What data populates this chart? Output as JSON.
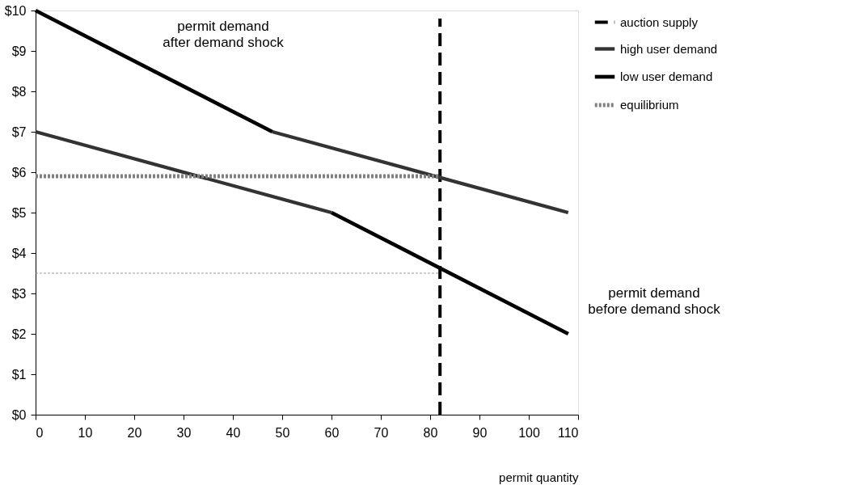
{
  "chart_data": {
    "type": "line",
    "xlabel": "permit quantity",
    "xlim": [
      0,
      110
    ],
    "xticks": [
      0,
      10,
      20,
      30,
      40,
      50,
      60,
      70,
      80,
      90,
      100,
      110
    ],
    "ylim": [
      0,
      10
    ],
    "yticks": [
      {
        "value": 0,
        "label": "$0"
      },
      {
        "value": 1,
        "label": "$1"
      },
      {
        "value": 2,
        "label": "$2"
      },
      {
        "value": 3,
        "label": "$3"
      },
      {
        "value": 4,
        "label": "$4"
      },
      {
        "value": 5,
        "label": "$5"
      },
      {
        "value": 6,
        "label": "$6"
      },
      {
        "value": 7,
        "label": "$7"
      },
      {
        "value": 8,
        "label": "$8"
      },
      {
        "value": 9,
        "label": "$9"
      },
      {
        "value": 10,
        "label": "$10"
      }
    ],
    "series": [
      {
        "name": "auction supply",
        "color": "#000000",
        "line_style": "dashed",
        "x": [
          82,
          82
        ],
        "values": [
          0,
          9.8
        ]
      },
      {
        "name": "high user demand",
        "color": "#333333",
        "line_style": "solid",
        "x": [
          0,
          60,
          null,
          48,
          108
        ],
        "values": [
          7,
          5,
          null,
          7,
          5
        ]
      },
      {
        "name": "low user demand",
        "color": "#000000",
        "line_style": "solid",
        "x": [
          0,
          48,
          null,
          60,
          108
        ],
        "values": [
          10,
          7,
          null,
          5,
          2
        ]
      },
      {
        "name": "equilibrium",
        "color": "#808080",
        "line_style": "dotted",
        "x": [
          0,
          82
        ],
        "values": [
          5.9,
          5.9
        ]
      },
      {
        "color": "#808080",
        "line_style": "dotted",
        "x": [
          0,
          82
        ],
        "values": [
          3.5,
          3.5
        ]
      }
    ],
    "annotations": [
      "permit demand\nafter demand shock",
      "permit demand\nbefore demand shock"
    ],
    "legend": "top right",
    "grid": false,
    "marker": "none"
  }
}
